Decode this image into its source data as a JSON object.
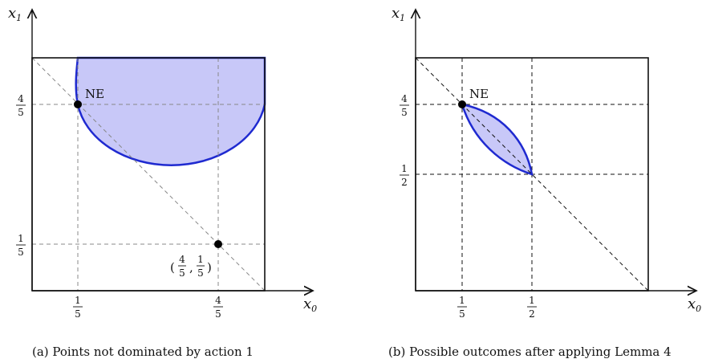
{
  "panel_a": {
    "x_axis_label": "x",
    "x_axis_sub": "0",
    "y_axis_label": "x",
    "y_axis_sub": "1",
    "ne_label": "NE",
    "x_ticks": [
      {
        "num": "1",
        "den": "5"
      },
      {
        "num": "4",
        "den": "5"
      }
    ],
    "y_ticks": [
      {
        "num": "4",
        "den": "5"
      },
      {
        "num": "1",
        "den": "5"
      }
    ],
    "point_label": {
      "open": "(",
      "a_num": "4",
      "a_den": "5",
      "sep": ",",
      "b_num": "1",
      "b_den": "5",
      "close": ")"
    },
    "caption": "(a)  Points not dominated by action 1",
    "region_fill": "#c8c8f8",
    "region_stroke": "#1f2ad0"
  },
  "panel_b": {
    "x_axis_label": "x",
    "x_axis_sub": "0",
    "y_axis_label": "x",
    "y_axis_sub": "1",
    "ne_label": "NE",
    "x_ticks": [
      {
        "num": "1",
        "den": "5"
      },
      {
        "num": "1",
        "den": "2"
      }
    ],
    "y_ticks": [
      {
        "num": "4",
        "den": "5"
      },
      {
        "num": "1",
        "den": "2"
      }
    ],
    "caption": "(b)  Possible outcomes after applying Lemma 4",
    "region_fill": "#c8c8f8",
    "region_stroke": "#1f2ad0"
  }
}
